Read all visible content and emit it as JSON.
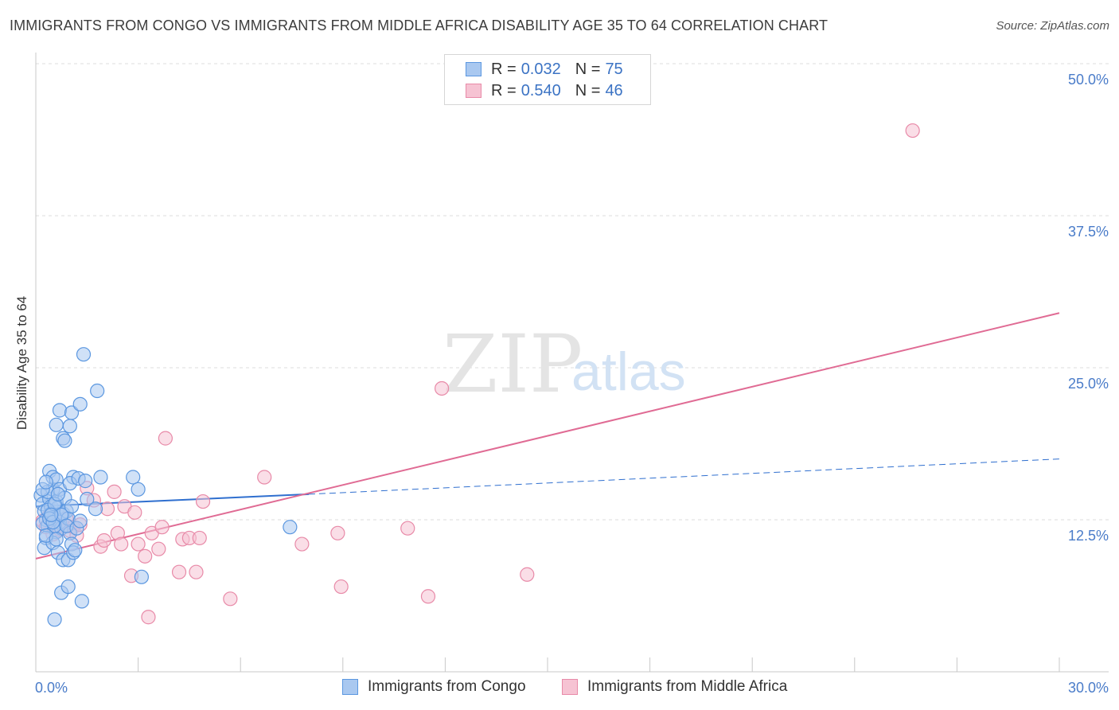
{
  "title": "IMMIGRANTS FROM CONGO VS IMMIGRANTS FROM MIDDLE AFRICA DISABILITY AGE 35 TO 64 CORRELATION CHART",
  "source": "Source: ZipAtlas.com",
  "colors": {
    "congo": "#5b97e0",
    "congo_fill": "#a9c8f0",
    "congo_line": "#2f6fcf",
    "middle_africa": "#e88aa8",
    "middle_africa_fill": "#f6c3d3",
    "middle_africa_line": "#e06b94",
    "tick_text": "#4a7cc9"
  },
  "legend": {
    "rows": [
      {
        "r_label": "R =",
        "r_value": "0.032",
        "n_label": "N =",
        "n_value": "75"
      },
      {
        "r_label": "R =",
        "r_value": "0.540",
        "n_label": "N =",
        "n_value": "46"
      }
    ]
  },
  "bottom_legend": {
    "congo": "Immigrants from Congo",
    "middle_africa": "Immigrants from Middle Africa"
  },
  "watermark": {
    "zip": "ZIP",
    "atlas": "atlas"
  },
  "chart_data": {
    "type": "scatter",
    "title": "IMMIGRANTS FROM CONGO VS IMMIGRANTS FROM MIDDLE AFRICA DISABILITY AGE 35 TO 64 CORRELATION CHART",
    "xlabel": "",
    "ylabel": "Disability Age 35 to 64",
    "xlim": [
      0,
      30
    ],
    "ylim": [
      0,
      50
    ],
    "x_tick_labels": [
      "0.0%",
      "30.0%"
    ],
    "y_ticks": [
      12.5,
      25,
      37.5,
      50
    ],
    "y_tick_labels": [
      "12.5%",
      "25.0%",
      "37.5%",
      "50.0%"
    ],
    "grid": true,
    "series": [
      {
        "name": "Immigrants from Congo",
        "r": 0.032,
        "n": 75,
        "trend": {
          "x": [
            0,
            8
          ],
          "y": [
            13.6,
            14.6
          ],
          "dashed_to": [
            30,
            17.5
          ]
        },
        "points": [
          [
            0.15,
            14.5
          ],
          [
            0.2,
            13.8
          ],
          [
            0.25,
            13.2
          ],
          [
            0.3,
            12.5
          ],
          [
            0.35,
            12.0
          ],
          [
            0.4,
            14.2
          ],
          [
            0.45,
            13.6
          ],
          [
            0.5,
            15.0
          ],
          [
            0.55,
            12.8
          ],
          [
            0.6,
            11.5
          ],
          [
            0.2,
            12.2
          ],
          [
            0.3,
            11.0
          ],
          [
            0.25,
            10.2
          ],
          [
            0.4,
            16.5
          ],
          [
            0.5,
            16.0
          ],
          [
            0.6,
            15.8
          ],
          [
            0.65,
            13.5
          ],
          [
            0.7,
            12.3
          ],
          [
            0.75,
            11.8
          ],
          [
            0.8,
            13.0
          ],
          [
            0.45,
            13.0
          ],
          [
            0.55,
            12.0
          ],
          [
            0.35,
            14.8
          ],
          [
            0.6,
            14.0
          ],
          [
            0.7,
            15.0
          ],
          [
            0.85,
            14.3
          ],
          [
            0.9,
            13.2
          ],
          [
            0.95,
            12.6
          ],
          [
            1.0,
            11.4
          ],
          [
            1.05,
            10.5
          ],
          [
            0.5,
            10.6
          ],
          [
            0.65,
            9.8
          ],
          [
            0.8,
            9.2
          ],
          [
            0.95,
            9.2
          ],
          [
            1.1,
            9.8
          ],
          [
            1.15,
            10.0
          ],
          [
            0.7,
            21.5
          ],
          [
            0.6,
            20.3
          ],
          [
            0.8,
            19.2
          ],
          [
            0.85,
            19.0
          ],
          [
            1.0,
            20.2
          ],
          [
            1.05,
            21.3
          ],
          [
            1.3,
            22.0
          ],
          [
            1.4,
            26.1
          ],
          [
            1.8,
            23.1
          ],
          [
            0.75,
            6.5
          ],
          [
            0.95,
            7.0
          ],
          [
            1.35,
            5.8
          ],
          [
            0.55,
            4.3
          ],
          [
            1.1,
            16.0
          ],
          [
            1.0,
            15.5
          ],
          [
            1.25,
            15.9
          ],
          [
            1.45,
            15.7
          ],
          [
            1.5,
            14.2
          ],
          [
            1.75,
            13.4
          ],
          [
            1.9,
            16.0
          ],
          [
            2.85,
            16.0
          ],
          [
            3.0,
            15.0
          ],
          [
            3.1,
            7.8
          ],
          [
            7.45,
            11.9
          ],
          [
            0.2,
            15.0
          ],
          [
            0.35,
            13.3
          ],
          [
            0.4,
            12.6
          ],
          [
            0.5,
            12.3
          ],
          [
            0.55,
            13.8
          ],
          [
            0.65,
            14.6
          ],
          [
            0.75,
            12.9
          ],
          [
            0.9,
            12.0
          ],
          [
            1.05,
            13.6
          ],
          [
            1.2,
            11.8
          ],
          [
            0.3,
            11.2
          ],
          [
            0.45,
            12.9
          ],
          [
            0.6,
            10.9
          ],
          [
            0.3,
            15.6
          ],
          [
            1.3,
            12.4
          ]
        ]
      },
      {
        "name": "Immigrants from Middle Africa",
        "r": 0.54,
        "n": 46,
        "trend": {
          "x": [
            0,
            30
          ],
          "y": [
            9.3,
            29.5
          ]
        },
        "points": [
          [
            0.2,
            12.4
          ],
          [
            0.3,
            11.9
          ],
          [
            0.4,
            12.9
          ],
          [
            0.5,
            11.3
          ],
          [
            0.6,
            12.1
          ],
          [
            0.7,
            11.7
          ],
          [
            0.8,
            12.0
          ],
          [
            0.9,
            12.6
          ],
          [
            1.0,
            11.6
          ],
          [
            1.1,
            11.9
          ],
          [
            1.2,
            11.2
          ],
          [
            1.3,
            12.1
          ],
          [
            1.5,
            15.1
          ],
          [
            1.7,
            14.1
          ],
          [
            1.9,
            10.3
          ],
          [
            2.0,
            10.8
          ],
          [
            2.1,
            13.4
          ],
          [
            2.3,
            14.8
          ],
          [
            2.4,
            11.4
          ],
          [
            2.5,
            10.5
          ],
          [
            2.6,
            13.6
          ],
          [
            2.8,
            7.9
          ],
          [
            2.9,
            13.1
          ],
          [
            3.0,
            10.5
          ],
          [
            3.2,
            9.5
          ],
          [
            3.3,
            4.5
          ],
          [
            3.4,
            11.4
          ],
          [
            3.6,
            10.1
          ],
          [
            3.7,
            11.9
          ],
          [
            3.8,
            19.2
          ],
          [
            4.2,
            8.2
          ],
          [
            4.3,
            10.9
          ],
          [
            4.5,
            11.0
          ],
          [
            4.7,
            8.2
          ],
          [
            4.8,
            11.0
          ],
          [
            4.9,
            14.0
          ],
          [
            5.7,
            6.0
          ],
          [
            6.7,
            16.0
          ],
          [
            7.8,
            10.5
          ],
          [
            8.85,
            11.4
          ],
          [
            8.95,
            7.0
          ],
          [
            10.9,
            11.8
          ],
          [
            11.5,
            6.2
          ],
          [
            11.9,
            23.3
          ],
          [
            14.4,
            8.0
          ],
          [
            25.7,
            44.5
          ]
        ]
      }
    ]
  }
}
